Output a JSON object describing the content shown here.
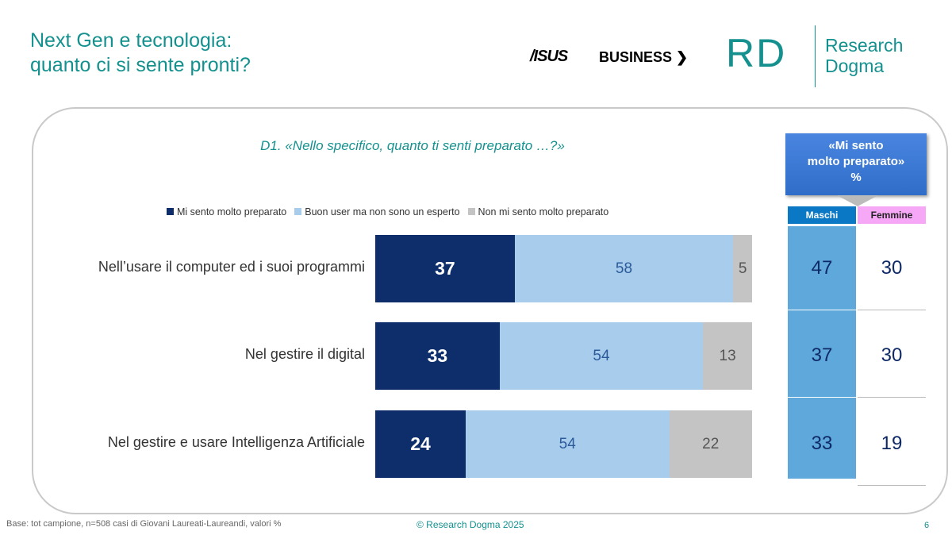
{
  "title_line1": "Next Gen e tecnologia:",
  "title_line2": "quanto ci si sente pronti?",
  "logos": {
    "asus": "/ISUS",
    "business": "BUSINESS ❯",
    "rd": "RD",
    "research": "Research",
    "dogma": "Dogma"
  },
  "footer": {
    "base": "Base: tot campione, n=508 casi di Giovani Laureati-Laureandi, valori %",
    "copyright": "© Research Dogma 2025",
    "page": "6"
  },
  "colors": {
    "dark": "#0d2d6b",
    "light": "#a8cdec",
    "gray": "#c4c4c4",
    "maschi": "#5ea8dc",
    "femmine": "#f6a8f6"
  },
  "chart_data": {
    "type": "bar",
    "stacked": true,
    "orientation": "horizontal",
    "title": "D1. «Nello specifico, quanto ti senti preparato …?»",
    "categories": [
      "Nell’usare il computer ed i suoi programmi",
      "Nel gestire il digital",
      "Nel gestire e usare Intelligenza Artificiale"
    ],
    "series": [
      {
        "name": "Mi sento molto preparato",
        "values": [
          37,
          33,
          24
        ]
      },
      {
        "name": "Buon user ma non sono un esperto",
        "values": [
          58,
          54,
          54
        ]
      },
      {
        "name": "Non mi sento molto preparato",
        "values": [
          5,
          13,
          22
        ]
      }
    ],
    "legend_position": "top",
    "side_table": {
      "header": [
        "«Mi sento",
        "molto preparato»",
        "%"
      ],
      "columns": [
        "Maschi",
        "Femmine"
      ],
      "maschi": [
        47,
        37,
        33
      ],
      "femmine": [
        30,
        30,
        19
      ]
    }
  }
}
